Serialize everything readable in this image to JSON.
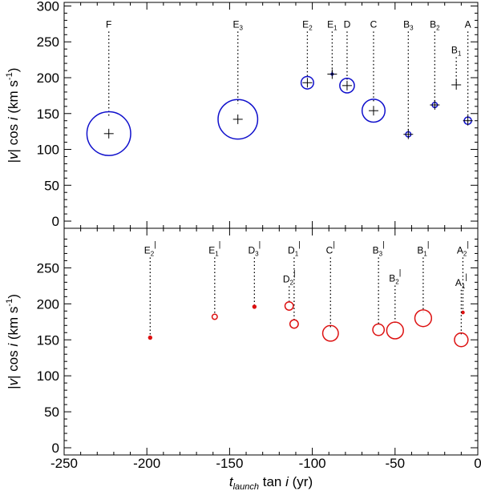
{
  "chart_data": {
    "type": "scatter",
    "xlabel": "t_launch tan i (yr)",
    "xlabel_parts": {
      "var": "t",
      "sub": "launch",
      "rest": " tan ",
      "ital": "i",
      "unit": " (yr)"
    },
    "xlim": [
      -250,
      0
    ],
    "x_ticks": [
      -250,
      -200,
      -150,
      -100,
      -50,
      0
    ],
    "marker_colors": {
      "top": "#1010cc",
      "bottom": "#dd1111"
    },
    "panels": [
      {
        "name": "top",
        "ylabel": "|v| cos i (km s-1)",
        "ylim": [
          -10,
          305
        ],
        "y_ticks": [
          0,
          50,
          100,
          150,
          200,
          250,
          300
        ],
        "label_y": 270,
        "points": [
          {
            "label": "F",
            "base": "F",
            "sub": "",
            "prime": "",
            "x": -223,
            "y": 122,
            "size": 21
          },
          {
            "label": "E3",
            "base": "E",
            "sub": "3",
            "prime": "",
            "x": -145,
            "y": 142,
            "size": 19
          },
          {
            "label": "E2",
            "base": "E",
            "sub": "2",
            "prime": "",
            "x": -103,
            "y": 193,
            "size": 6
          },
          {
            "label": "E1",
            "base": "E",
            "sub": "1",
            "prime": "",
            "x": -88,
            "y": 205,
            "size": 1
          },
          {
            "label": "D",
            "base": "D",
            "sub": "",
            "prime": "",
            "x": -79,
            "y": 189,
            "size": 7
          },
          {
            "label": "C",
            "base": "C",
            "sub": "",
            "prime": "",
            "x": -63,
            "y": 154,
            "size": 11
          },
          {
            "label": "B3",
            "base": "B",
            "sub": "3",
            "prime": "",
            "x": -42,
            "y": 121,
            "size": 2.5
          },
          {
            "label": "B2",
            "base": "B",
            "sub": "2",
            "prime": "",
            "x": -26,
            "y": 162,
            "size": 2.5
          },
          {
            "label": "B1",
            "base": "B",
            "sub": "1",
            "prime": "",
            "x": -13,
            "y": 190,
            "size": 0,
            "label_y": 234
          },
          {
            "label": "A",
            "base": "A",
            "sub": "",
            "prime": "",
            "x": -6,
            "y": 140,
            "size": 3.5
          }
        ]
      },
      {
        "name": "bottom",
        "ylabel": "|v| cos i (km s-1)",
        "ylim": [
          -10,
          305
        ],
        "y_ticks": [
          0,
          50,
          100,
          150,
          200,
          250
        ],
        "label_y": 270,
        "points": [
          {
            "label": "E2'",
            "base": "E",
            "sub": "2",
            "prime": "|",
            "x": -198,
            "y": 153,
            "size": 1.5
          },
          {
            "label": "E1'",
            "base": "E",
            "sub": "1",
            "prime": "|",
            "x": -159,
            "y": 182,
            "size": 2.5
          },
          {
            "label": "D3'",
            "base": "D",
            "sub": "3",
            "prime": "|",
            "x": -135,
            "y": 196,
            "size": 1.5
          },
          {
            "label": "D2'",
            "base": "D",
            "sub": "2",
            "prime": "|",
            "x": -114,
            "y": 197,
            "size": 4,
            "label_y": 230
          },
          {
            "label": "D1'",
            "base": "D",
            "sub": "1",
            "prime": "|",
            "x": -111,
            "y": 172,
            "size": 4
          },
          {
            "label": "C'",
            "base": "C",
            "sub": "",
            "prime": "|",
            "x": -89,
            "y": 159,
            "size": 7.5
          },
          {
            "label": "B3'",
            "base": "B",
            "sub": "3",
            "prime": "|",
            "x": -60,
            "y": 164,
            "size": 5.5
          },
          {
            "label": "B2'",
            "base": "B",
            "sub": "2",
            "prime": "|",
            "x": -50,
            "y": 163,
            "size": 8,
            "label_y": 231
          },
          {
            "label": "B1'",
            "base": "B",
            "sub": "1",
            "prime": "|",
            "x": -33,
            "y": 180,
            "size": 8
          },
          {
            "label": "A2'",
            "base": "A",
            "sub": "2",
            "prime": "|",
            "x": -9,
            "y": 188,
            "size": 1.2
          },
          {
            "label": "A1'",
            "base": "A",
            "sub": "1",
            "prime": "|",
            "x": -10,
            "y": 150,
            "size": 6.5,
            "label_y": 225
          }
        ]
      }
    ]
  }
}
